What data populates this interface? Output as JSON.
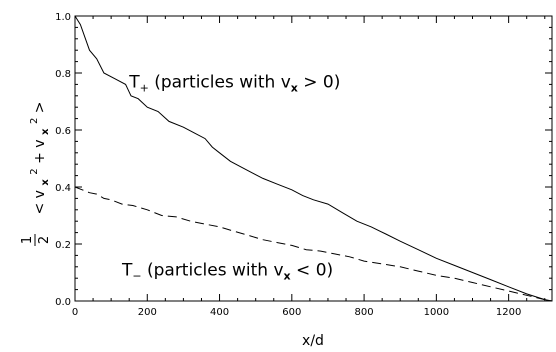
{
  "chart_data": {
    "type": "line",
    "xlabel": "x/d",
    "ylabel": {
      "fraction_numerator": "1",
      "fraction_denominator": "2",
      "open_bracket": "<",
      "close_bracket": ">",
      "var_a": "v",
      "sub_a": "x",
      "sup_a": "2",
      "plus": "+",
      "var_b": "v",
      "sub_b": "x",
      "sup_b": "2"
    },
    "xlim": [
      0,
      1320
    ],
    "ylim": [
      0,
      1.0
    ],
    "xticks": [
      0,
      200,
      400,
      600,
      800,
      1000,
      1200
    ],
    "xtick_labels": [
      "0",
      "200",
      "400",
      "600",
      "800",
      "1000",
      "1200"
    ],
    "yticks": [
      0.0,
      0.2,
      0.4,
      0.6,
      0.8,
      1.0
    ],
    "ytick_labels": [
      "0.0",
      "0.2",
      "0.4",
      "0.6",
      "0.8",
      "1.0"
    ],
    "grid": false,
    "series": [
      {
        "style": "solid",
        "x": [
          0,
          15,
          40,
          60,
          80,
          110,
          140,
          155,
          175,
          200,
          230,
          260,
          300,
          330,
          360,
          380,
          400,
          430,
          460,
          490,
          520,
          560,
          600,
          630,
          660,
          700,
          740,
          780,
          820,
          860,
          900,
          950,
          1000,
          1050,
          1100,
          1150,
          1200,
          1250,
          1300,
          1320
        ],
        "y": [
          1.0,
          0.97,
          0.88,
          0.85,
          0.8,
          0.78,
          0.76,
          0.72,
          0.71,
          0.68,
          0.665,
          0.63,
          0.61,
          0.59,
          0.57,
          0.54,
          0.52,
          0.49,
          0.47,
          0.45,
          0.43,
          0.41,
          0.39,
          0.37,
          0.355,
          0.34,
          0.31,
          0.28,
          0.26,
          0.235,
          0.21,
          0.18,
          0.15,
          0.125,
          0.1,
          0.075,
          0.05,
          0.025,
          0.005,
          0.0
        ]
      },
      {
        "style": "dashed",
        "x": [
          0,
          20,
          40,
          60,
          80,
          100,
          130,
          160,
          200,
          240,
          280,
          320,
          360,
          400,
          440,
          480,
          520,
          560,
          600,
          640,
          680,
          720,
          760,
          800,
          850,
          900,
          950,
          1000,
          1050,
          1100,
          1150,
          1200,
          1250,
          1300,
          1320
        ],
        "y": [
          0.4,
          0.39,
          0.38,
          0.375,
          0.36,
          0.355,
          0.34,
          0.335,
          0.32,
          0.3,
          0.295,
          0.28,
          0.27,
          0.26,
          0.245,
          0.23,
          0.215,
          0.205,
          0.195,
          0.18,
          0.175,
          0.165,
          0.155,
          0.14,
          0.13,
          0.12,
          0.105,
          0.09,
          0.08,
          0.065,
          0.05,
          0.035,
          0.02,
          0.005,
          0.0
        ]
      }
    ],
    "annotations": [
      {
        "x": 150,
        "y": 0.75,
        "main": "T",
        "sub": "+",
        "text_open": "(particles with v",
        "text_sub": "x",
        "text_close": "> 0)"
      },
      {
        "x": 130,
        "y": 0.09,
        "main": "T",
        "sub": "−",
        "text_open": "(particles with v",
        "text_sub": "x",
        "text_close": "< 0)"
      }
    ]
  }
}
